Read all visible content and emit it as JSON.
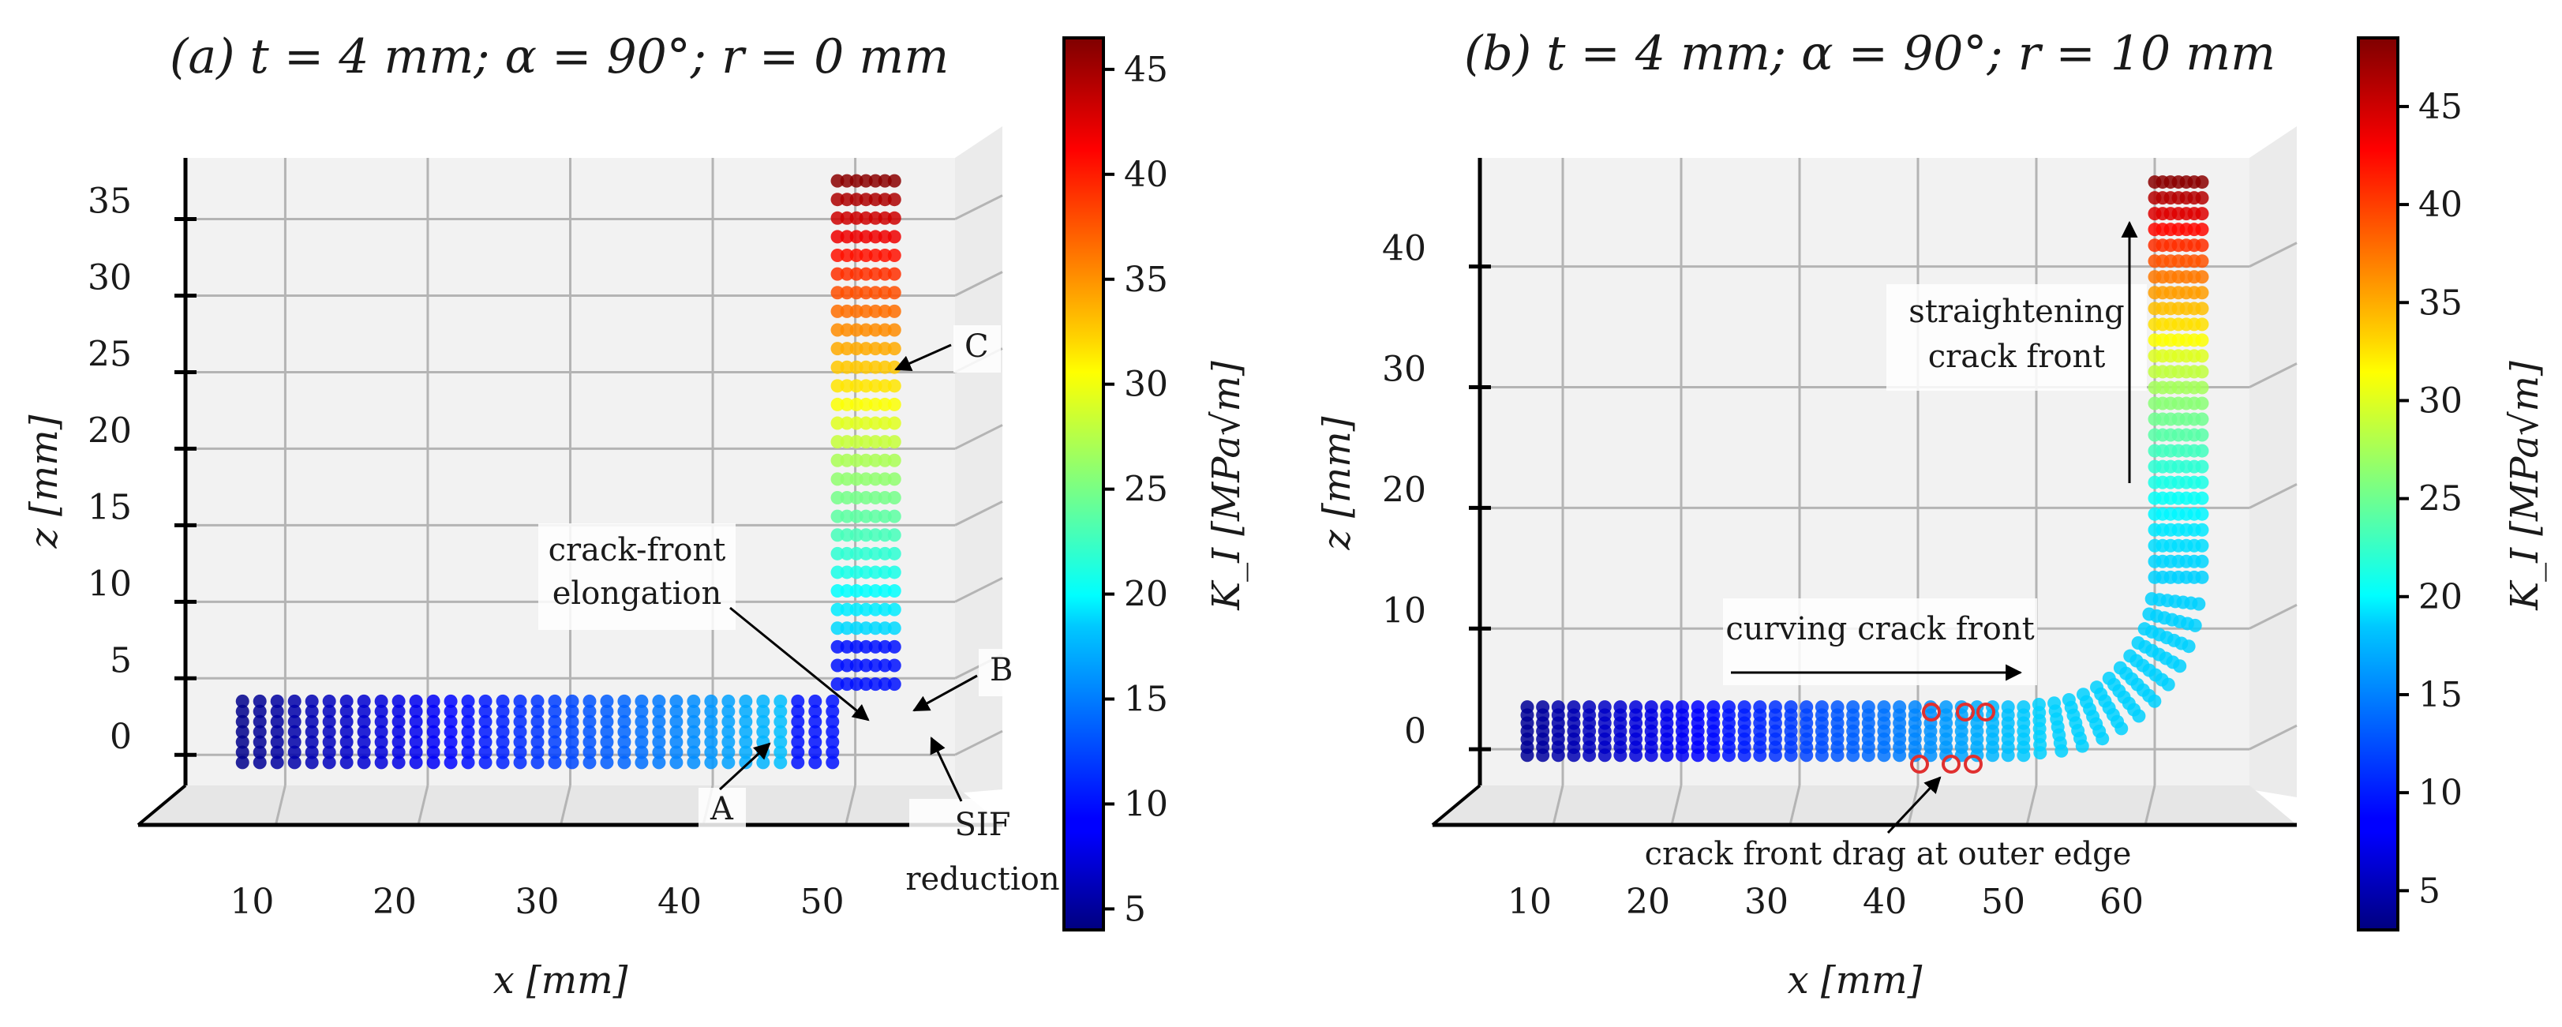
{
  "chart_data": [
    {
      "type": "scatter",
      "title": "(a) t = 4 mm;  α = 90°;  r = 0 mm",
      "xlabel": "x [mm]",
      "ylabel": "z [mm]",
      "xticks": [
        10,
        20,
        30,
        40,
        50
      ],
      "zticks": [
        0,
        5,
        10,
        15,
        20,
        25,
        30,
        35
      ],
      "xlim": [
        3,
        57
      ],
      "zlim": [
        -2,
        39
      ],
      "geometry": {
        "horizontal_arm": {
          "x_start": 7,
          "x_end": 52,
          "z_low": -0.5,
          "z_high": 3.5
        },
        "vertical_arm": {
          "x_left": 48.5,
          "x_right": 53,
          "z_start": 0,
          "z_end": 37.5
        },
        "corner_radius": 0
      },
      "colorbar": {
        "label": "K_I [MPa√m]",
        "min": 4,
        "max": 46.5,
        "ticks": [
          5,
          10,
          15,
          20,
          25,
          30,
          35,
          40,
          45
        ]
      },
      "annotations": [
        {
          "id": "c",
          "text": "C"
        },
        {
          "id": "b",
          "text": "B"
        },
        {
          "id": "a",
          "text": "A"
        },
        {
          "id": "elong",
          "lines": [
            "crack-front",
            "elongation"
          ]
        },
        {
          "id": "sif",
          "lines": [
            "SIF",
            "reduction"
          ]
        }
      ]
    },
    {
      "type": "scatter",
      "title": "(b) t = 4 mm;  α = 90°;  r = 10 mm",
      "xlabel": "x [mm]",
      "ylabel": "z [mm]",
      "xticks": [
        10,
        20,
        30,
        40,
        50,
        60
      ],
      "zticks": [
        0,
        10,
        20,
        30,
        40
      ],
      "xlim": [
        3,
        68
      ],
      "zlim": [
        -3,
        49
      ],
      "geometry": {
        "horizontal_arm": {
          "x_start": 7,
          "x_end": 54,
          "z_low": -0.5,
          "z_high": 3.5
        },
        "vertical_arm": {
          "x_left": 60,
          "x_right": 64,
          "z_start": 14,
          "z_end": 47
        },
        "corner_radius": 10
      },
      "colorbar": {
        "label": "K_I [MPa√m]",
        "min": 3,
        "max": 48.5,
        "ticks": [
          5,
          10,
          15,
          20,
          25,
          30,
          35,
          40,
          45
        ]
      },
      "annotations": [
        {
          "id": "straight",
          "lines": [
            "straightening",
            "crack front"
          ]
        },
        {
          "id": "curving",
          "text": "curving crack front"
        },
        {
          "id": "drag",
          "text": "crack front drag at outer edge"
        }
      ]
    }
  ]
}
